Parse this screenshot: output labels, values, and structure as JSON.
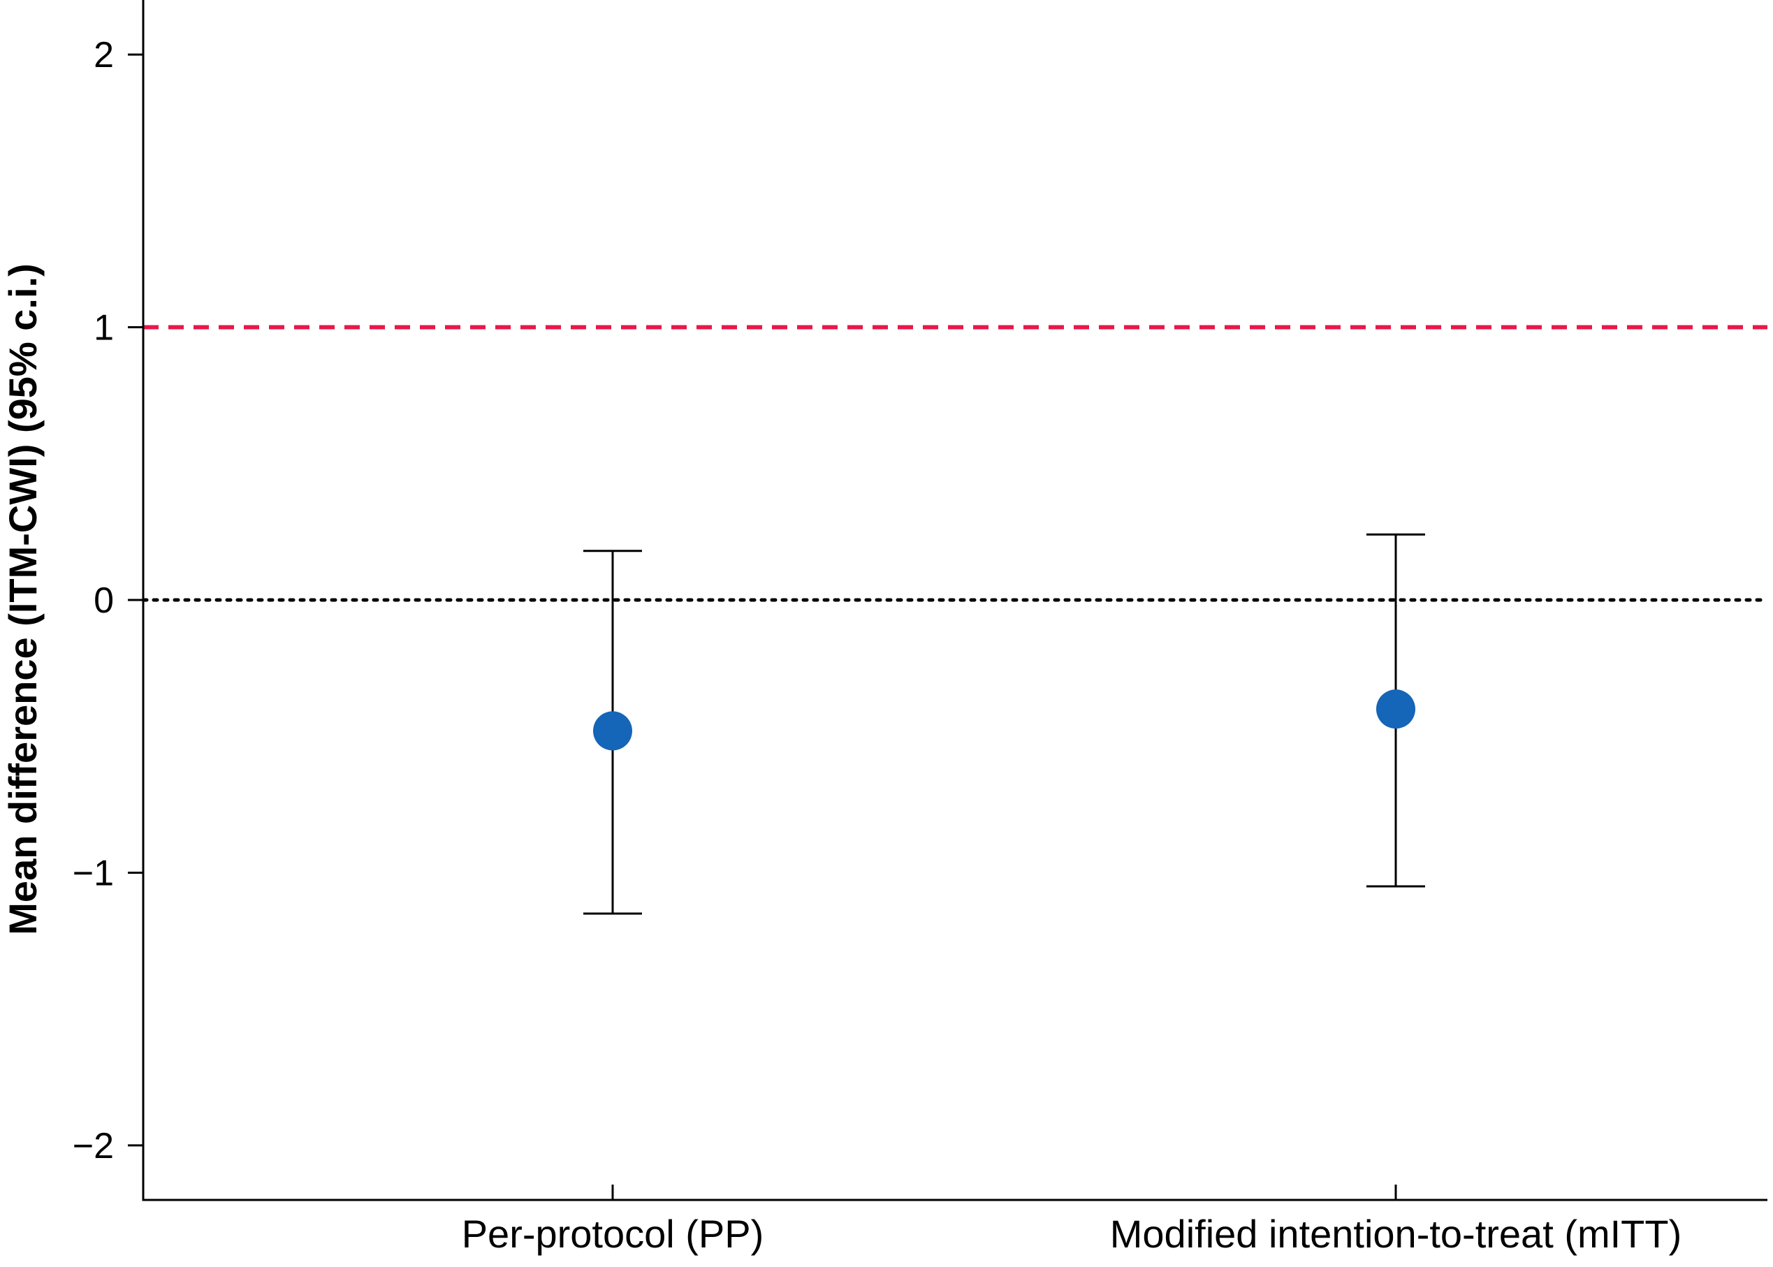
{
  "chart_data": {
    "type": "scatter",
    "title": "",
    "xlabel": "",
    "ylabel": "Mean difference (ITM-CWI) (95% c.i.)",
    "categories": [
      "Per-protocol (PP)",
      "Modified intention-to-treat (mITT)"
    ],
    "ylim": [
      -2.2,
      2.2
    ],
    "yticks": [
      2,
      1,
      0,
      -1,
      -2
    ],
    "ytick_labels": [
      "2",
      "1",
      "0",
      "−1",
      "−2"
    ],
    "series": [
      {
        "points": [
          {
            "category": "Per-protocol (PP)",
            "mean": -0.48,
            "ci_low": -1.15,
            "ci_high": 0.18
          },
          {
            "category": "Modified intention-to-treat (mITT)",
            "mean": -0.4,
            "ci_low": -1.05,
            "ci_high": 0.24
          }
        ]
      }
    ],
    "reference_lines": [
      {
        "y": 1,
        "style": "dashed",
        "color": "#e8174a"
      },
      {
        "y": 0,
        "style": "dotted",
        "color": "#000000"
      }
    ],
    "colors": {
      "point": "#1565b8",
      "errorbar": "#000000",
      "axis": "#000000"
    },
    "grid": false,
    "legend": "none"
  }
}
